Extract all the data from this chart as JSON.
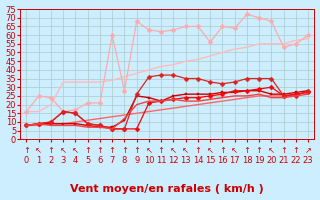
{
  "title": "",
  "xlabel": "Vent moyen/en rafales ( km/h )",
  "bg_color": "#cceeff",
  "grid_color": "#aacccc",
  "xlim": [
    -0.5,
    23.5
  ],
  "ylim": [
    0,
    75
  ],
  "yticks": [
    0,
    5,
    10,
    15,
    20,
    25,
    30,
    35,
    40,
    45,
    50,
    55,
    60,
    65,
    70,
    75
  ],
  "xticks": [
    0,
    1,
    2,
    3,
    4,
    5,
    6,
    7,
    8,
    9,
    10,
    11,
    12,
    13,
    14,
    15,
    16,
    17,
    18,
    19,
    20,
    21,
    22,
    23
  ],
  "series": [
    {
      "x": [
        0,
        1,
        2,
        3,
        4,
        5,
        6,
        7,
        8,
        9,
        10,
        11,
        12,
        13,
        14,
        15,
        16,
        17,
        18,
        19,
        20,
        21,
        22,
        23
      ],
      "y": [
        16,
        16,
        20,
        33,
        33,
        33,
        33,
        34,
        36,
        38,
        40,
        42,
        43,
        45,
        46,
        48,
        50,
        52,
        53,
        55,
        55,
        55,
        57,
        58
      ],
      "color": "#ffbbbb",
      "lw": 1.0,
      "marker": null
    },
    {
      "x": [
        0,
        1,
        2,
        3,
        4,
        5,
        6,
        7,
        8,
        9,
        10,
        11,
        12,
        13,
        14,
        15,
        16,
        17,
        18,
        19,
        20,
        21,
        22,
        23
      ],
      "y": [
        16,
        25,
        24,
        16,
        17,
        21,
        21,
        60,
        28,
        68,
        63,
        62,
        63,
        65,
        65,
        56,
        65,
        64,
        72,
        70,
        68,
        53,
        55,
        60
      ],
      "color": "#ffaaaa",
      "lw": 0.9,
      "marker": "D",
      "markersize": 2.5
    },
    {
      "x": [
        0,
        1,
        2,
        3,
        4,
        5,
        6,
        7,
        8,
        9,
        10,
        11,
        12,
        13,
        14,
        15,
        16,
        17,
        18,
        19,
        20,
        21,
        22,
        23
      ],
      "y": [
        8,
        8,
        9,
        9,
        10,
        11,
        12,
        13,
        14,
        15,
        16,
        17,
        18,
        19,
        20,
        21,
        22,
        23,
        24,
        25,
        25,
        25,
        26,
        27
      ],
      "color": "#ff6666",
      "lw": 1.0,
      "marker": null
    },
    {
      "x": [
        0,
        1,
        2,
        3,
        4,
        5,
        6,
        7,
        8,
        9,
        10,
        11,
        12,
        13,
        14,
        15,
        16,
        17,
        18,
        19,
        20,
        21,
        22,
        23
      ],
      "y": [
        8,
        9,
        9,
        9,
        9,
        8,
        7,
        7,
        11,
        25,
        24,
        22,
        25,
        26,
        26,
        26,
        27,
        27,
        28,
        28,
        26,
        26,
        27,
        28
      ],
      "color": "#cc0000",
      "lw": 1.0,
      "marker": "s",
      "markersize": 2.0
    },
    {
      "x": [
        0,
        1,
        2,
        3,
        4,
        5,
        6,
        7,
        8,
        9,
        10,
        11,
        12,
        13,
        14,
        15,
        16,
        17,
        18,
        19,
        20,
        21,
        22,
        23
      ],
      "y": [
        8,
        9,
        10,
        16,
        15,
        9,
        8,
        6,
        6,
        6,
        21,
        22,
        23,
        24,
        24,
        25,
        26,
        28,
        28,
        29,
        30,
        25,
        26,
        27
      ],
      "color": "#ff0000",
      "lw": 0.9,
      "marker": "D",
      "markersize": 2.5
    },
    {
      "x": [
        0,
        1,
        2,
        3,
        4,
        5,
        6,
        7,
        8,
        9,
        10,
        11,
        12,
        13,
        14,
        15,
        16,
        17,
        18,
        19,
        20,
        21,
        22,
        23
      ],
      "y": [
        8,
        9,
        10,
        16,
        15,
        9,
        8,
        6,
        6,
        26,
        36,
        37,
        37,
        35,
        35,
        33,
        32,
        33,
        35,
        35,
        35,
        25,
        25,
        28
      ],
      "color": "#dd2222",
      "lw": 0.9,
      "marker": "D",
      "markersize": 2.5
    },
    {
      "x": [
        0,
        1,
        2,
        3,
        4,
        5,
        6,
        7,
        8,
        9,
        10,
        11,
        12,
        13,
        14,
        15,
        16,
        17,
        18,
        19,
        20,
        21,
        22,
        23
      ],
      "y": [
        8,
        9,
        8,
        8,
        8,
        7,
        7,
        6,
        12,
        20,
        22,
        22,
        23,
        22,
        22,
        23,
        24,
        25,
        25,
        26,
        24,
        24,
        25,
        26
      ],
      "color": "#ee4444",
      "lw": 1.0,
      "marker": null
    }
  ],
  "wind_arrows": [
    "↑",
    "↖",
    "↑",
    "↖",
    "↖",
    "↑",
    "↑",
    "↑",
    "↑",
    "↑",
    "↖",
    "↑",
    "↖",
    "↖",
    "↑",
    "↖",
    "↑",
    "↖",
    "↑",
    "↑",
    "↖",
    "↑",
    "↑",
    "↗"
  ],
  "xlabel_color": "#cc0000",
  "xlabel_fontsize": 8,
  "tick_color": "#cc0000",
  "tick_fontsize": 6,
  "arrow_color": "#cc0000",
  "arrow_fontsize": 6
}
